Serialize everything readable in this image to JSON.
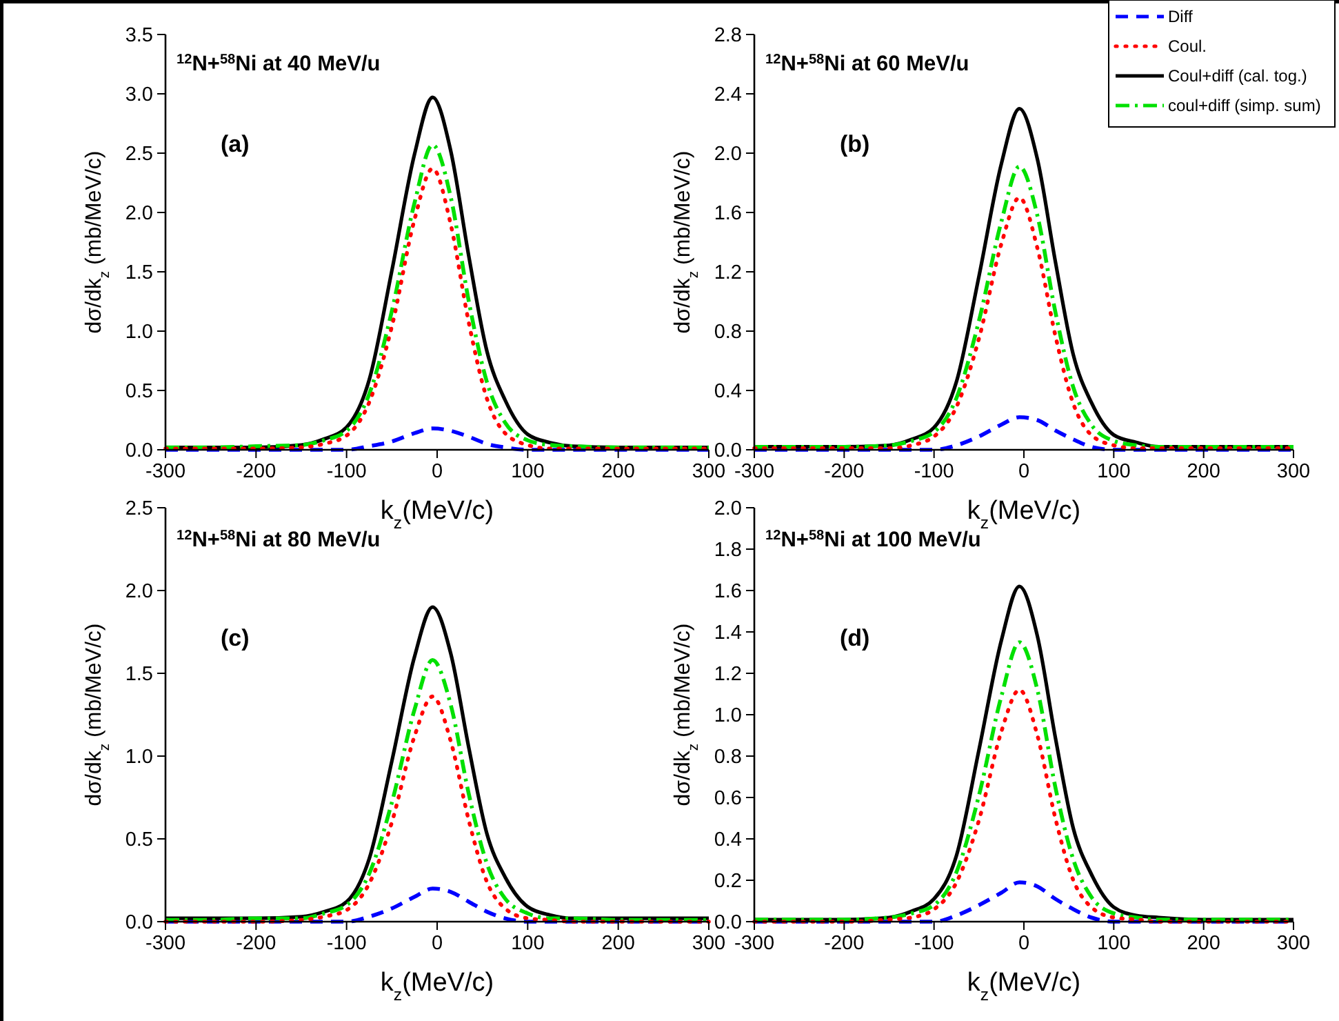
{
  "chart_data": [
    {
      "type": "line",
      "title": "$^{12}$N+$^{58}$Ni at 40 MeV/u",
      "annotations": [
        "(a)"
      ],
      "xlabel": "k$_{z}$(MeV/c)",
      "ylabel": "dσ/dk$_{z}$ (mb/MeV/c)",
      "x": [
        -300,
        -250,
        -200,
        -150,
        -125,
        -100,
        -75,
        -50,
        -25,
        -5,
        15,
        35,
        55,
        75,
        100,
        125,
        150,
        200,
        250,
        300
      ],
      "xlim": [
        -300,
        300
      ],
      "xticks": [
        -300,
        -200,
        -100,
        0,
        100,
        200,
        300
      ],
      "ylim": [
        0,
        3.5
      ],
      "yticks": [
        {
          "value": 0,
          "label": "0.0"
        },
        0.5,
        {
          "value": 1,
          "label": "1.0"
        },
        1.5,
        {
          "value": 2,
          "label": "2.0"
        },
        2.5,
        {
          "value": 3,
          "label": "3.0"
        },
        3.5
      ],
      "grid": false,
      "legend": false,
      "series": [
        {
          "color": "#0000ff",
          "line_style": "dashed",
          "values": [
            0,
            0,
            0,
            0,
            0,
            0,
            0.03,
            0.07,
            0.14,
            0.18,
            0.16,
            0.11,
            0.05,
            0.02,
            0,
            0,
            0,
            0,
            0,
            0
          ]
        },
        {
          "color": "#ff0000",
          "line_style": "dotted",
          "values": [
            0.01,
            0.01,
            0.01,
            0.02,
            0.05,
            0.12,
            0.4,
            1.04,
            1.94,
            2.37,
            1.9,
            1.07,
            0.43,
            0.14,
            0.04,
            0.01,
            0.01,
            0.01,
            0.01,
            0.01
          ]
        },
        {
          "color": "#000000",
          "line_style": "solid",
          "values": [
            0.02,
            0.02,
            0.02,
            0.04,
            0.09,
            0.19,
            0.59,
            1.51,
            2.49,
            2.97,
            2.52,
            1.63,
            0.83,
            0.42,
            0.13,
            0.06,
            0.03,
            0.02,
            0.02,
            0.02
          ]
        },
        {
          "color": "#00e000",
          "line_style": "dashdot",
          "values": [
            0.02,
            0.02,
            0.03,
            0.04,
            0.08,
            0.16,
            0.47,
            1.17,
            2.08,
            2.57,
            2.13,
            1.25,
            0.57,
            0.23,
            0.08,
            0.04,
            0.03,
            0.02,
            0.02,
            0.02
          ]
        }
      ]
    },
    {
      "type": "line",
      "title": "$^{12}$N+$^{58}$Ni at 60 MeV/u",
      "annotations": [
        "(b)"
      ],
      "xlabel": "k$_{z}$(MeV/c)",
      "ylabel": "dσ/dk$_{z}$ (mb/MeV/c)",
      "x": [
        -300,
        -250,
        -200,
        -150,
        -125,
        -100,
        -75,
        -50,
        -25,
        -5,
        15,
        35,
        55,
        75,
        100,
        125,
        150,
        200,
        250,
        300
      ],
      "xlim": [
        -300,
        300
      ],
      "xticks": [
        -300,
        -200,
        -100,
        0,
        100,
        200,
        300
      ],
      "ylim": [
        0,
        2.8
      ],
      "yticks": [
        {
          "value": 0,
          "label": "0.0"
        },
        0.4,
        0.8,
        1.2,
        1.6,
        {
          "value": 2,
          "label": "2.0"
        },
        2.4,
        2.8
      ],
      "grid": false,
      "legend": "top right",
      "series": [
        {
          "name": "Diff",
          "color": "#0000ff",
          "line_style": "dashed",
          "values": [
            0,
            0,
            0,
            0,
            0,
            0,
            0.03,
            0.09,
            0.17,
            0.22,
            0.2,
            0.13,
            0.07,
            0.02,
            0,
            0,
            0,
            0,
            0,
            0
          ]
        },
        {
          "name": "Coul.",
          "color": "#ff0000",
          "line_style": "dotted",
          "values": [
            0.01,
            0.01,
            0.01,
            0.01,
            0.03,
            0.09,
            0.29,
            0.75,
            1.39,
            1.7,
            1.36,
            0.77,
            0.31,
            0.1,
            0.03,
            0.01,
            0.01,
            0.01,
            0.01,
            0.01
          ]
        },
        {
          "name": "Coul+diff (cal. tog.)",
          "color": "#000000",
          "line_style": "solid",
          "values": [
            0.02,
            0.02,
            0.02,
            0.03,
            0.07,
            0.15,
            0.46,
            1.17,
            1.93,
            2.3,
            1.96,
            1.27,
            0.64,
            0.32,
            0.1,
            0.05,
            0.02,
            0.02,
            0.02,
            0.02
          ]
        },
        {
          "name": "coul+diff (simp. sum)",
          "color": "#00e000",
          "line_style": "dashdot",
          "values": [
            0.02,
            0.02,
            0.02,
            0.03,
            0.06,
            0.12,
            0.35,
            0.87,
            1.54,
            1.91,
            1.58,
            0.93,
            0.42,
            0.17,
            0.06,
            0.03,
            0.02,
            0.02,
            0.02,
            0.02
          ]
        }
      ]
    },
    {
      "type": "line",
      "title": "$^{12}$N+$^{58}$Ni at 80 MeV/u",
      "annotations": [
        "(c)"
      ],
      "xlabel": "k$_{z}$(MeV/c)",
      "ylabel": "dσ/dk$_{z}$ (mb/MeV/c)",
      "x": [
        -300,
        -250,
        -200,
        -150,
        -125,
        -100,
        -75,
        -50,
        -25,
        -5,
        15,
        35,
        55,
        75,
        100,
        125,
        150,
        200,
        250,
        300
      ],
      "xlim": [
        -300,
        300
      ],
      "xticks": [
        -300,
        -200,
        -100,
        0,
        100,
        200,
        300
      ],
      "ylim": [
        0,
        2.5
      ],
      "yticks": [
        {
          "value": 0,
          "label": "0.0"
        },
        0.5,
        {
          "value": 1,
          "label": "1.0"
        },
        1.5,
        {
          "value": 2,
          "label": "2.0"
        },
        2.5
      ],
      "grid": false,
      "legend": false,
      "series": [
        {
          "color": "#0000ff",
          "line_style": "dashed",
          "values": [
            0,
            0,
            0,
            0,
            0,
            0,
            0.03,
            0.08,
            0.15,
            0.2,
            0.18,
            0.12,
            0.06,
            0.02,
            0,
            0,
            0,
            0,
            0,
            0
          ]
        },
        {
          "color": "#ff0000",
          "line_style": "dotted",
          "values": [
            0,
            0,
            0,
            0.01,
            0.03,
            0.07,
            0.23,
            0.6,
            1.12,
            1.36,
            1.09,
            0.61,
            0.24,
            0.08,
            0.02,
            0.01,
            0,
            0,
            0,
            0
          ]
        },
        {
          "color": "#000000",
          "line_style": "solid",
          "values": [
            0.02,
            0.02,
            0.02,
            0.03,
            0.06,
            0.12,
            0.38,
            0.97,
            1.6,
            1.9,
            1.62,
            1.05,
            0.53,
            0.27,
            0.09,
            0.04,
            0.02,
            0.02,
            0.02,
            0.02
          ]
        },
        {
          "color": "#00e000",
          "line_style": "dashdot",
          "values": [
            0.01,
            0.01,
            0.02,
            0.02,
            0.05,
            0.1,
            0.29,
            0.72,
            1.28,
            1.58,
            1.31,
            0.77,
            0.35,
            0.14,
            0.05,
            0.02,
            0.02,
            0.01,
            0.01,
            0.01
          ]
        }
      ]
    },
    {
      "type": "line",
      "title": "$^{12}$N+$^{58}$Ni at 100 MeV/u",
      "annotations": [
        "(d)"
      ],
      "xlabel": "k$_{z}$(MeV/c)",
      "ylabel": "dσ/dk$_{z}$ (mb/MeV/c)",
      "x": [
        -300,
        -250,
        -200,
        -150,
        -125,
        -100,
        -75,
        -50,
        -25,
        -5,
        15,
        35,
        55,
        75,
        100,
        125,
        150,
        200,
        250,
        300
      ],
      "xlim": [
        -300,
        300
      ],
      "xticks": [
        -300,
        -200,
        -100,
        0,
        100,
        200,
        300
      ],
      "ylim": [
        0,
        2.0
      ],
      "yticks": [
        {
          "value": 0,
          "label": "0.0"
        },
        0.2,
        0.4,
        0.6,
        0.8,
        {
          "value": 1,
          "label": "1.0"
        },
        1.2,
        1.4,
        1.6,
        1.8,
        {
          "value": 2,
          "label": "2.0"
        }
      ],
      "grid": false,
      "legend": false,
      "series": [
        {
          "color": "#0000ff",
          "line_style": "dashed",
          "values": [
            0,
            0,
            0,
            0,
            0,
            0,
            0.03,
            0.08,
            0.14,
            0.19,
            0.17,
            0.11,
            0.06,
            0.02,
            0,
            0,
            0,
            0,
            0,
            0
          ]
        },
        {
          "color": "#ff0000",
          "line_style": "dotted",
          "values": [
            0,
            0,
            0,
            0.01,
            0.02,
            0.06,
            0.19,
            0.49,
            0.92,
            1.12,
            0.9,
            0.5,
            0.2,
            0.07,
            0.02,
            0.01,
            0,
            0,
            0,
            0
          ]
        },
        {
          "color": "#000000",
          "line_style": "solid",
          "values": [
            0.01,
            0.01,
            0.01,
            0.02,
            0.05,
            0.11,
            0.32,
            0.83,
            1.36,
            1.62,
            1.38,
            0.89,
            0.45,
            0.23,
            0.07,
            0.03,
            0.02,
            0.01,
            0.01,
            0.01
          ]
        },
        {
          "color": "#00e000",
          "line_style": "dashdot",
          "values": [
            0.01,
            0.01,
            0.01,
            0.02,
            0.04,
            0.08,
            0.24,
            0.61,
            1.09,
            1.35,
            1.12,
            0.65,
            0.3,
            0.12,
            0.04,
            0.02,
            0.01,
            0.01,
            0.01,
            0.01
          ]
        }
      ]
    }
  ]
}
